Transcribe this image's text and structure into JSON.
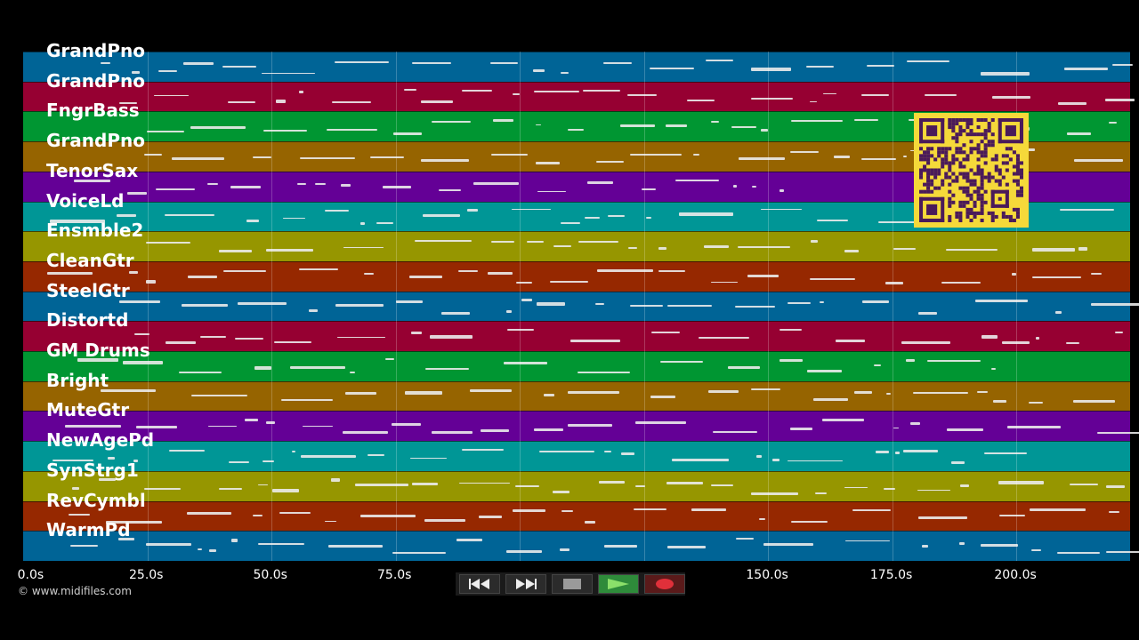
{
  "tracks": [
    {
      "name": "GrandPno",
      "color": "#006496"
    },
    {
      "name": "GrandPno",
      "color": "#960032"
    },
    {
      "name": "FngrBass",
      "color": "#009632"
    },
    {
      "name": "GrandPno",
      "color": "#966400"
    },
    {
      "name": "TenorSax",
      "color": "#640096"
    },
    {
      "name": "VoiceLd",
      "color": "#009696"
    },
    {
      "name": "Ensmble2",
      "color": "#969600"
    },
    {
      "name": "CleanGtr",
      "color": "#962800"
    },
    {
      "name": "SteelGtr",
      "color": "#006496"
    },
    {
      "name": "Distortd",
      "color": "#960032"
    },
    {
      "name": "GM Drums",
      "color": "#009632"
    },
    {
      "name": "Bright",
      "color": "#966400"
    },
    {
      "name": "MuteGtr",
      "color": "#640096"
    },
    {
      "name": "NewAgePd",
      "color": "#009696"
    },
    {
      "name": "SynStrg1",
      "color": "#969600"
    },
    {
      "name": "RevCymbl",
      "color": "#962800"
    },
    {
      "name": "WarmPd",
      "color": "#006496"
    }
  ],
  "timeline": {
    "ticks": [
      "0.0s",
      "25.0s",
      "50.0s",
      "75.0s",
      "150.0s",
      "175.0s",
      "200.0s"
    ],
    "tick_values": [
      0,
      25,
      50,
      75,
      150,
      175,
      200
    ]
  },
  "copyright": "© www.midifiles.com",
  "transport": {
    "rewind": "rewind-icon",
    "fast_forward": "fast-forward-icon",
    "stop": "stop-icon",
    "play": "play-icon",
    "record": "record-icon",
    "play_color": "#2e8b3a",
    "record_color": "#c0282a"
  }
}
